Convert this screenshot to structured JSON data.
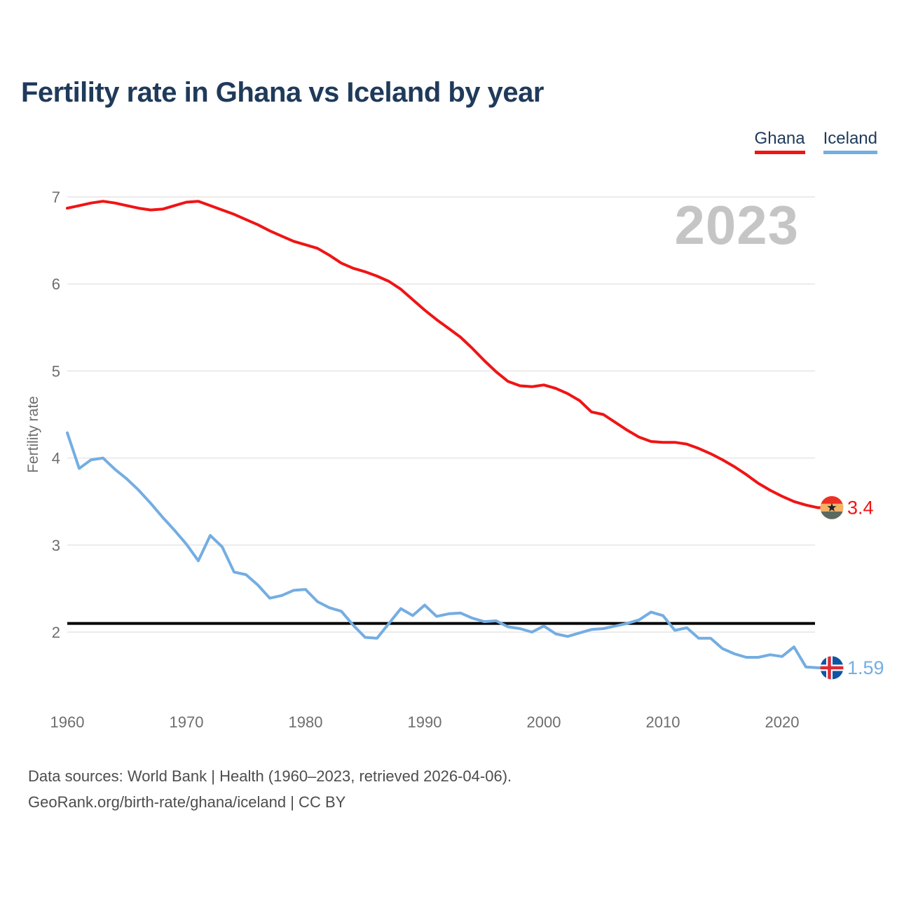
{
  "title": "Fertility rate in Ghana vs Iceland by year",
  "watermark": "2023",
  "y_axis_label": "Fertility rate",
  "legend": {
    "items": [
      {
        "label": "Ghana",
        "color": "#f01414"
      },
      {
        "label": "Iceland",
        "color": "#74ade2"
      }
    ]
  },
  "footer": {
    "line1": "Data sources: World Bank | Health (1960–2023, retrieved 2026-04-06).",
    "line2": "GeoRank.org/birth-rate/ghana/iceland | CC BY"
  },
  "chart_data": {
    "type": "line",
    "title": "Fertility rate in Ghana vs Iceland by year",
    "xlabel": "",
    "ylabel": "Fertility rate",
    "years": {
      "start": 1960,
      "end": 2023,
      "step": 1
    },
    "xticks": [
      1960,
      1970,
      1980,
      1990,
      2000,
      2010,
      2020
    ],
    "yticks": [
      2,
      3,
      4,
      5,
      6,
      7
    ],
    "ylim": [
      1.4,
      7.2
    ],
    "grid": "horizontal",
    "legend_position": "top-right",
    "reference_line": {
      "value": 2.1,
      "color": "#000000"
    },
    "series": [
      {
        "name": "Ghana",
        "color": "#f01414",
        "end_label": "3.4",
        "final_value": 3.4,
        "values": [
          6.87,
          6.9,
          6.93,
          6.95,
          6.93,
          6.9,
          6.87,
          6.85,
          6.86,
          6.9,
          6.94,
          6.95,
          6.9,
          6.85,
          6.8,
          6.74,
          6.68,
          6.61,
          6.55,
          6.49,
          6.45,
          6.41,
          6.33,
          6.24,
          6.18,
          6.14,
          6.09,
          6.03,
          5.94,
          5.82,
          5.7,
          5.59,
          5.49,
          5.39,
          5.26,
          5.12,
          4.99,
          4.88,
          4.83,
          4.82,
          4.84,
          4.8,
          4.74,
          4.66,
          4.53,
          4.5,
          4.41,
          4.32,
          4.24,
          4.19,
          4.18,
          4.18,
          4.16,
          4.11,
          4.05,
          3.98,
          3.9,
          3.81,
          3.71,
          3.63,
          3.56,
          3.5,
          3.46,
          3.43
        ]
      },
      {
        "name": "Iceland",
        "color": "#74ade2",
        "end_label": "1.59",
        "final_value": 1.59,
        "values": [
          4.29,
          3.88,
          3.98,
          4.0,
          3.87,
          3.76,
          3.63,
          3.48,
          3.32,
          3.17,
          3.01,
          2.82,
          3.11,
          2.98,
          2.69,
          2.66,
          2.54,
          2.39,
          2.42,
          2.48,
          2.49,
          2.35,
          2.28,
          2.24,
          2.08,
          1.94,
          1.93,
          2.1,
          2.27,
          2.19,
          2.31,
          2.18,
          2.21,
          2.22,
          2.16,
          2.12,
          2.13,
          2.06,
          2.04,
          2.0,
          2.07,
          1.98,
          1.95,
          1.99,
          2.03,
          2.04,
          2.07,
          2.1,
          2.14,
          2.23,
          2.19,
          2.02,
          2.05,
          1.93,
          1.93,
          1.81,
          1.75,
          1.71,
          1.71,
          1.74,
          1.72,
          1.83,
          1.6,
          1.59
        ]
      }
    ],
    "flags": {
      "ghana": {
        "red": "#ee3124",
        "gold": "#f4b266",
        "green": "#5b6a60",
        "star": "#1b2430"
      },
      "iceland": {
        "field": "#0f55a4",
        "cross_outer": "#ffffff",
        "cross_inner": "#dc2b35"
      }
    }
  }
}
